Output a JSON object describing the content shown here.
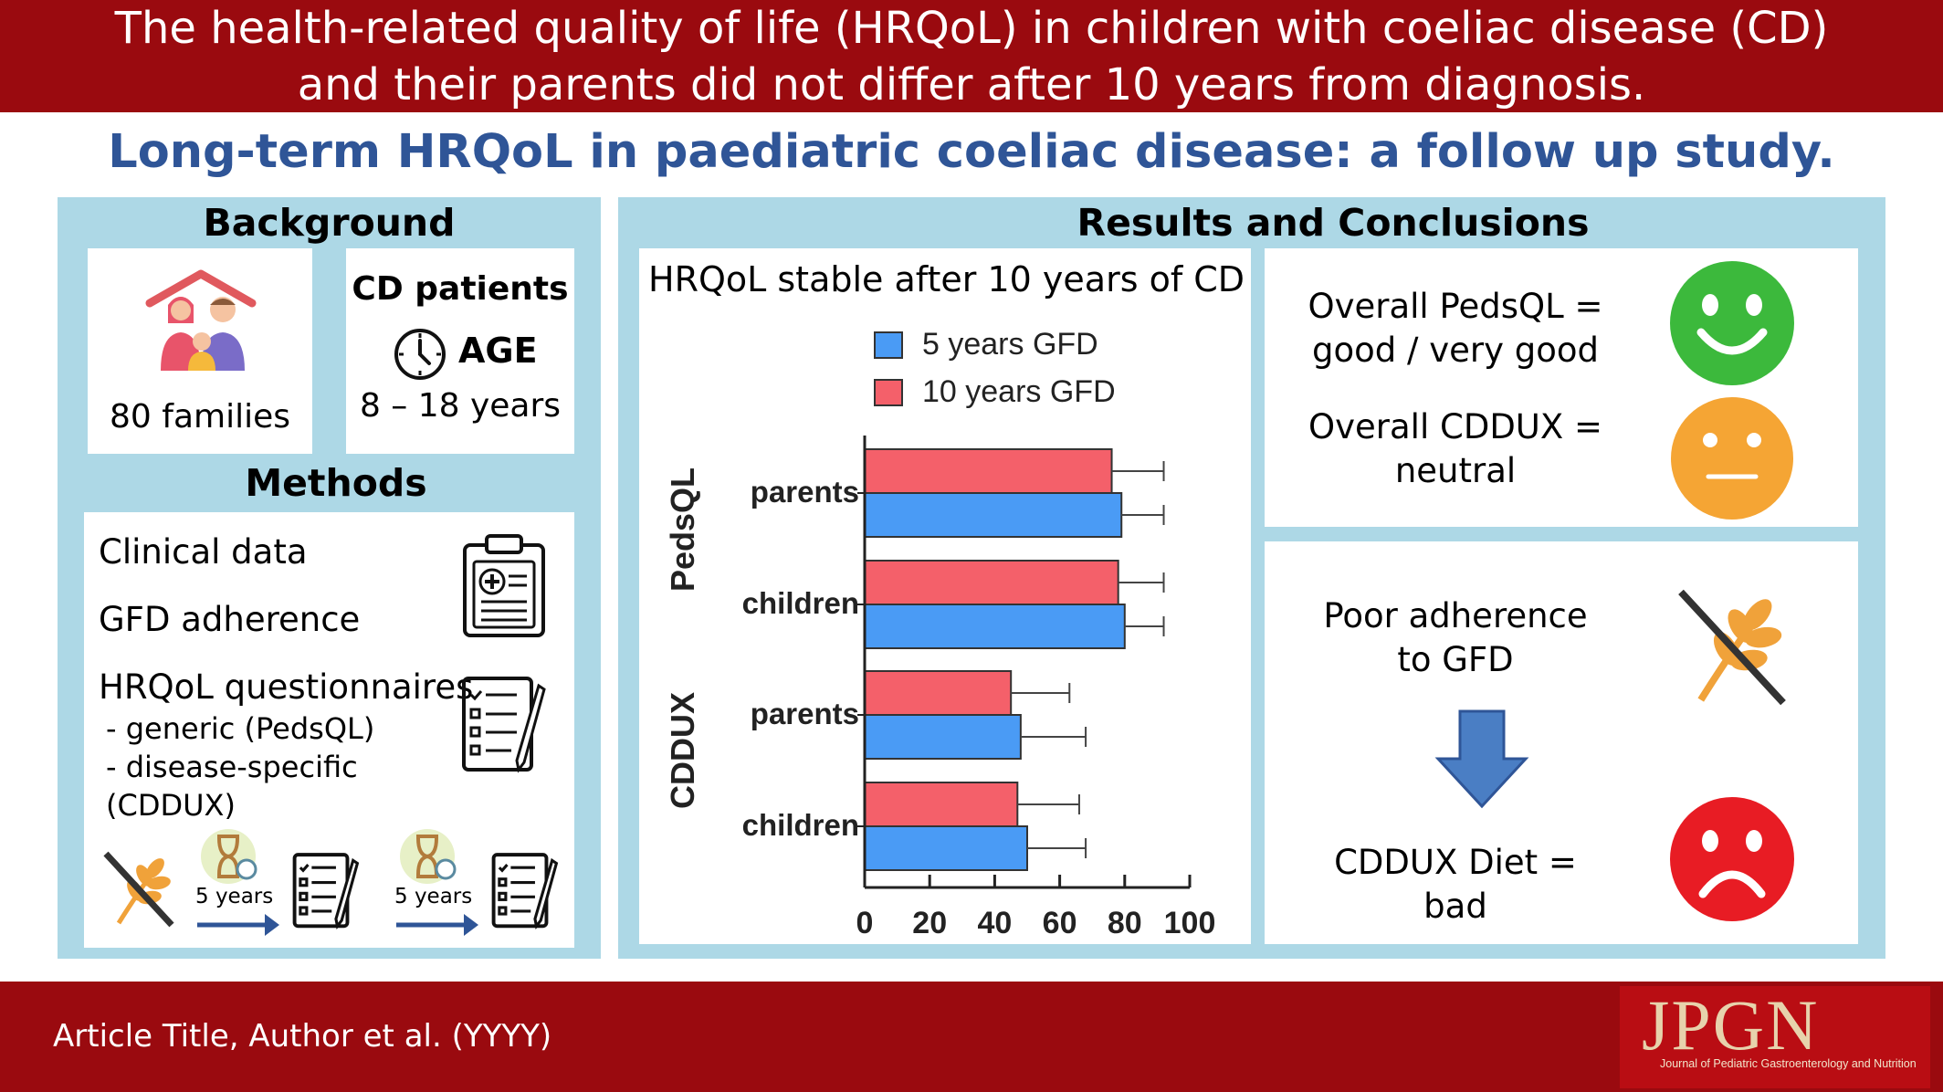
{
  "header": {
    "line1": "The health-related quality of life (HRQoL) in children with coeliac disease (CD)",
    "line2": "and their parents did not differ after 10 years from diagnosis.",
    "subtitle": "Long-term HRQoL in paediatric coeliac disease: a follow up study."
  },
  "background": {
    "heading": "Background",
    "families_label": "80 families",
    "patients_title": "CD patients",
    "age_label": "AGE",
    "age_range": "8 – 18 years"
  },
  "methods": {
    "heading": "Methods",
    "item1": "Clinical data",
    "item2": "GFD adherence",
    "item3": "HRQoL questionnaires",
    "sub1": "- generic (PedsQL)",
    "sub2": "- disease-specific",
    "sub3": "(CDDUX)",
    "timeline1": "5 years",
    "timeline2": "5 years"
  },
  "results": {
    "heading": "Results and Conclusions",
    "chart_title": "HRQoL stable after 10 years of CD",
    "pedsql_line1": "Overall PedsQL =",
    "pedsql_line2": "good / very good",
    "cddux_line1": "Overall CDDUX =",
    "cddux_line2": "neutral",
    "poor_line1": "Poor adherence",
    "poor_line2": "to GFD",
    "diet_line1": "CDDUX Diet =",
    "diet_line2": "bad"
  },
  "footer": {
    "article": "Article Title, Author et al. (YYYY)",
    "logo": "JPGN",
    "logo_sub": "Journal of Pediatric Gastroenterology and Nutrition"
  },
  "colors": {
    "banner": "#9a0a0f",
    "subtitle": "#2f5597",
    "panel": "#add8e6",
    "series_5y": "#4a9bf5",
    "series_10y": "#f4606a",
    "happy": "#3cb93c",
    "neutral": "#f5a534",
    "sad": "#e81c24",
    "arrow": "#4a7ec4"
  },
  "icons": {
    "family": "family-house-icon",
    "clock": "clock-icon",
    "clinical": "medical-clipboard-icon",
    "questionnaire": "checklist-icon",
    "no_gluten": "no-gluten-wheat-icon",
    "hourglass": "hourglass-icon",
    "down_arrow": "down-arrow-icon"
  },
  "chart_data": {
    "type": "bar",
    "orientation": "horizontal",
    "groups": [
      "PedsQL",
      "CDDUX"
    ],
    "categories": [
      "parents",
      "children",
      "parents",
      "children"
    ],
    "series": [
      {
        "name": "5 years GFD",
        "color": "#4a9bf5",
        "values": [
          79,
          80,
          48,
          50
        ],
        "errors": [
          13,
          12,
          20,
          18
        ]
      },
      {
        "name": "10 years GFD",
        "color": "#f4606a",
        "values": [
          76,
          78,
          45,
          47
        ],
        "errors": [
          16,
          14,
          18,
          19
        ]
      }
    ],
    "xlim": [
      0,
      100
    ],
    "xticks": [
      "0",
      "20",
      "40",
      "60",
      "80",
      "100"
    ],
    "legend_position": "top"
  }
}
